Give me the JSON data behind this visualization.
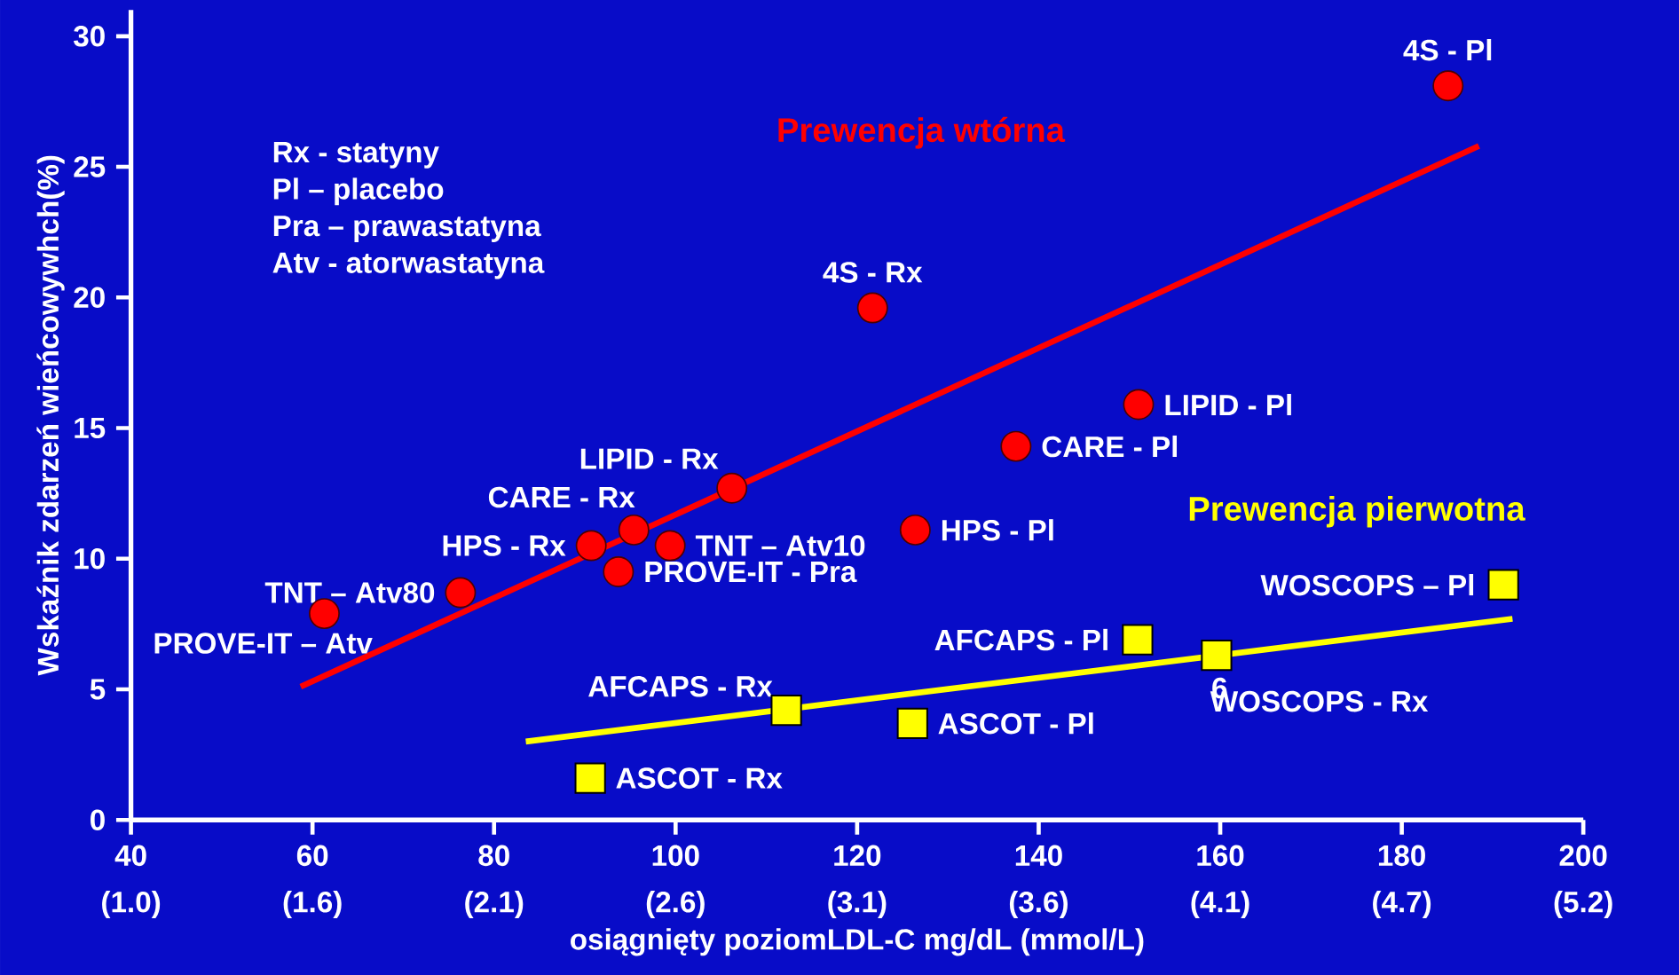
{
  "chart_data": {
    "type": "scatter",
    "xlabel": "osiągnięty poziomLDL-C mg/dL (mmol/L)",
    "ylabel": "Wskaźnik zdarzeń wieńcowywhch(%)",
    "xlim": [
      40,
      200
    ],
    "ylim": [
      0,
      31
    ],
    "xticks": [
      40,
      60,
      80,
      100,
      120,
      140,
      160,
      180,
      200
    ],
    "yticks": [
      0,
      5,
      10,
      15,
      20,
      25,
      30
    ],
    "grid": false,
    "legend": false,
    "series": [
      {
        "marker": "circle",
        "color": "#ff0000",
        "x": [
          185.1,
          121.7,
          151.0,
          137.5,
          106.2,
          95.4,
          90.7,
          99.4,
          126.4,
          93.7,
          76.3,
          61.3
        ],
        "values": [
          28.1,
          19.6,
          15.9,
          14.3,
          12.7,
          11.1,
          10.5,
          10.5,
          11.1,
          9.5,
          8.7,
          7.9
        ]
      },
      {
        "marker": "square",
        "color": "#ffff00",
        "x": [
          191.2,
          150.9,
          159.6,
          112.2,
          126.1,
          90.6
        ],
        "values": [
          9.0,
          6.9,
          6.3,
          4.2,
          3.7,
          1.6
        ]
      },
      {
        "type": "line",
        "name": "Prewencja wtórna",
        "color": "#ff0000",
        "x": [
          58.7,
          188.5
        ],
        "values": [
          5.1,
          25.8
        ]
      },
      {
        "type": "line",
        "name": "Prewencja pierwotna",
        "color": "#ffff00",
        "x": [
          83.5,
          192.2
        ],
        "values": [
          3.0,
          7.7
        ]
      }
    ],
    "annotations": [
      "Rx -   statyny",
      "Pl –   placebo",
      "Pra – prawastatyna",
      "Atv - atorwastatyna",
      {
        "text": "4S - Pl",
        "x": 185.1,
        "y": 28.1
      },
      {
        "text": "4S - Rx",
        "x": 121.7,
        "y": 19.6
      },
      {
        "text": "LIPID - Pl",
        "x": 151.0,
        "y": 15.9
      },
      {
        "text": "CARE - Pl",
        "x": 137.5,
        "y": 14.3
      },
      {
        "text": "LIPID - Rx",
        "x": 106.2,
        "y": 12.7
      },
      {
        "text": "CARE - Rx",
        "x": 95.4,
        "y": 11.1
      },
      {
        "text": "HPS - Rx",
        "x": 90.7,
        "y": 10.5
      },
      {
        "text": "TNT – Atv10",
        "x": 99.4,
        "y": 10.5
      },
      {
        "text": "HPS - Pl",
        "x": 126.4,
        "y": 11.1
      },
      {
        "text": "PROVE-IT - Pra",
        "x": 93.7,
        "y": 9.5
      },
      {
        "text": "TNT – Atv80",
        "x": 76.3,
        "y": 8.7
      },
      {
        "text": "PROVE-IT – Atv",
        "x": 61.3,
        "y": 7.9
      },
      {
        "text": "WOSCOPS – Pl",
        "x": 191.2,
        "y": 9.0
      },
      {
        "text": "AFCAPS - Pl",
        "x": 150.9,
        "y": 6.9
      },
      {
        "text": "WOSCOPS - Rx",
        "x": 159.6,
        "y": 6.3
      },
      {
        "text": "AFCAPS - Rx",
        "x": 112.2,
        "y": 4.2
      },
      {
        "text": "ASCOT - Pl",
        "x": 126.1,
        "y": 3.7
      },
      {
        "text": "ASCOT - Rx",
        "x": 90.6,
        "y": 1.6
      },
      {
        "text": "6",
        "x": 159.6,
        "y": 6.3
      },
      "(1.0)",
      "(1.6)",
      "(2.1)",
      "(2.6)",
      "(3.1)",
      "(3.6)",
      "(4.1)",
      "(4.7)",
      "(5.2)"
    ]
  }
}
